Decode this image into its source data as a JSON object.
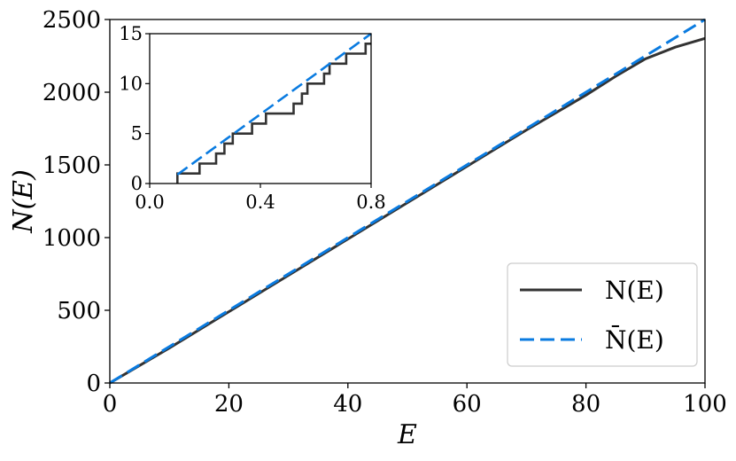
{
  "chart_data": [
    {
      "type": "line",
      "title": "",
      "xlabel": "E",
      "ylabel": "N(E)",
      "xlim": [
        0,
        100
      ],
      "ylim": [
        0,
        2500
      ],
      "xticks": [
        0,
        20,
        40,
        60,
        80,
        100
      ],
      "yticks": [
        0,
        500,
        1000,
        1500,
        2000,
        2500
      ],
      "grid": false,
      "legend_position": "bottom-right",
      "series": [
        {
          "name": "N(E)",
          "style": "solid",
          "color": "#333333",
          "x": [
            0,
            10,
            20,
            30,
            40,
            50,
            60,
            70,
            80,
            85,
            90,
            95,
            100
          ],
          "y": [
            0,
            240,
            490,
            740,
            990,
            1240,
            1490,
            1740,
            1980,
            2110,
            2230,
            2310,
            2370
          ]
        },
        {
          "name": "N̄(E)",
          "style": "dashed",
          "color": "#0a7be0",
          "x": [
            0,
            100
          ],
          "y": [
            0,
            2500
          ]
        }
      ]
    },
    {
      "type": "line",
      "title": "",
      "xlabel": "",
      "ylabel": "",
      "xlim": [
        0,
        0.8
      ],
      "ylim": [
        0,
        15
      ],
      "xticks": [
        0.0,
        0.4,
        0.8
      ],
      "xtick_labels": [
        "0.0",
        "0.4",
        "0.8"
      ],
      "yticks": [
        0,
        5,
        10,
        15
      ],
      "grid": false,
      "series": [
        {
          "style": "step",
          "color": "#333333",
          "x": [
            0.1,
            0.18,
            0.24,
            0.27,
            0.3,
            0.37,
            0.42,
            0.52,
            0.55,
            0.57,
            0.63,
            0.65,
            0.71,
            0.78,
            0.8
          ],
          "y": [
            1,
            2,
            3,
            4,
            5,
            6,
            7,
            8,
            9,
            10,
            11,
            12,
            13,
            14,
            14
          ]
        },
        {
          "style": "dashed",
          "color": "#0a7be0",
          "x": [
            0.1,
            0.8
          ],
          "y": [
            0.9,
            15
          ]
        }
      ]
    }
  ]
}
